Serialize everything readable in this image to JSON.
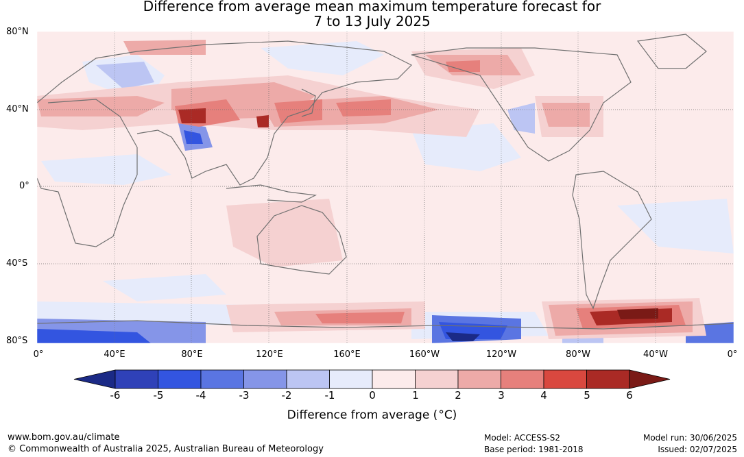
{
  "title_line1": "Difference from average mean maximum temperature forecast for",
  "title_line2": "7 to 13 July 2025",
  "lat_labels": [
    "80°N",
    "40°N",
    "0°",
    "40°S",
    "80°S"
  ],
  "lon_labels": [
    "0°",
    "40°E",
    "80°E",
    "120°E",
    "160°E",
    "160°W",
    "120°W",
    "80°W",
    "40°W",
    "0°"
  ],
  "colorbar": {
    "ticks": [
      "-6",
      "-5",
      "-4",
      "-3",
      "-2",
      "-1",
      "0",
      "1",
      "2",
      "3",
      "4",
      "5",
      "6"
    ],
    "colors": [
      "#1b2a86",
      "#2f41b8",
      "#3355e0",
      "#5a75e2",
      "#8595e8",
      "#bcc5f3",
      "#e6ebfb",
      "#fcebeb",
      "#f5d1d1",
      "#edaaa8",
      "#e6807c",
      "#d9483f",
      "#aa2a25",
      "#7a1a16"
    ],
    "label": "Difference from average (°C)",
    "label_text": "Difference from average (",
    "label_unit": "°C)"
  },
  "footer": {
    "url": "www.bom.gov.au/climate",
    "copyright": "© Commonwealth of Australia 2025, Australian Bureau of Meteorology",
    "model": "Model: ACCESS-S2",
    "base_period": "Base period: 1981-2018",
    "model_run": "Model run: 30/06/2025",
    "issued": "Issued: 02/07/2025"
  }
}
